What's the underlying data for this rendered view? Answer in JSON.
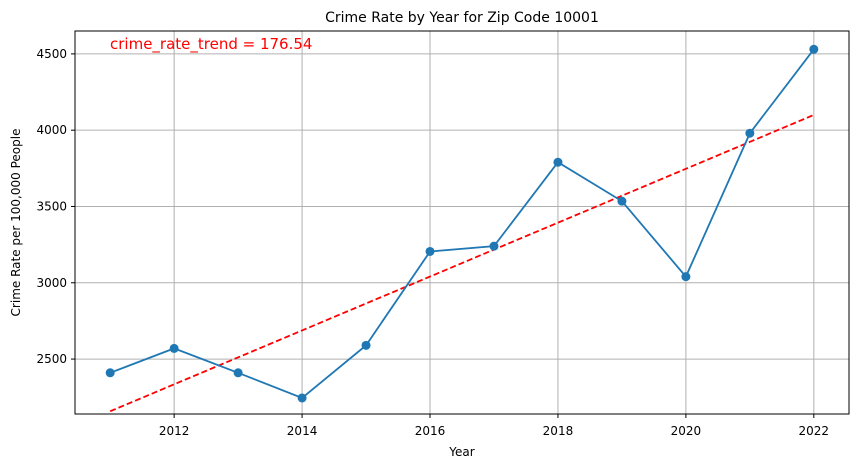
{
  "chart_data": {
    "type": "line",
    "title": "Crime Rate by Year for Zip Code 10001",
    "xlabel": "Year",
    "ylabel": "Crime Rate per 100,000 People",
    "x": [
      2011,
      2012,
      2013,
      2014,
      2015,
      2016,
      2017,
      2018,
      2019,
      2020,
      2021,
      2022
    ],
    "series": [
      {
        "values": [
          2410,
          2570,
          2410,
          2245,
          2590,
          3205,
          3240,
          3790,
          3535,
          3040,
          3980,
          4530
        ],
        "color": "#1f77b4",
        "marker": "circle"
      },
      {
        "values": [
          2158,
          4100
        ],
        "x": [
          2011,
          2022
        ],
        "color": "#ff0000",
        "style": "dashed"
      }
    ],
    "annotation": {
      "text": "crime_rate_trend = 176.54",
      "color": "#ff0000"
    },
    "xticks": [
      2012,
      2014,
      2016,
      2018,
      2020,
      2022
    ],
    "yticks": [
      2500,
      3000,
      3500,
      4000,
      4500
    ],
    "xlim": [
      2010.45,
      2022.55
    ],
    "ylim": [
      2140,
      4650
    ],
    "grid": true
  }
}
